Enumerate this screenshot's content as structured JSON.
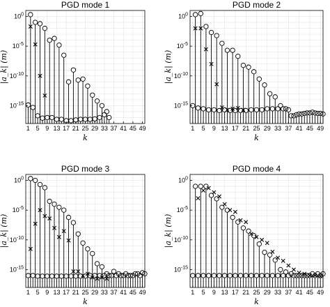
{
  "chart_data": [
    {
      "type": "stem",
      "title": "PGD mode 1",
      "xlabel": "k",
      "ylabel": "|a_k| (m)",
      "x_ticks": [
        1,
        5,
        9,
        13,
        17,
        21,
        25,
        29,
        33,
        37,
        41,
        45,
        49
      ],
      "y_scale": "log",
      "y_ticks": [
        1e-15,
        1e-10,
        1e-05,
        1
      ],
      "y_tick_labels": [
        [
          "10",
          "-15"
        ],
        [
          "10",
          "-10"
        ],
        [
          "10",
          "-5"
        ],
        [
          "10",
          "0"
        ]
      ],
      "ylim": [
        1e-18,
        10
      ],
      "xlim": [
        0,
        50
      ],
      "grid": true,
      "series": [
        {
          "marker": "circle",
          "k": [
            1,
            2,
            3,
            4,
            5,
            6,
            7,
            8,
            9,
            10,
            11,
            12,
            13,
            14,
            15,
            16,
            17,
            18,
            19,
            20,
            21,
            22,
            23,
            24,
            25,
            26,
            27,
            28,
            29,
            30,
            31,
            32,
            33,
            34,
            35
          ],
          "values": [
            1.3e-15,
            2.0,
            5e-16,
            0.1,
            2e-17,
            0.06,
            8e-18,
            0.01,
            1e-17,
            0.0001,
            1e-17,
            0.0002,
            5e-18,
            1.5e-05,
            5e-18,
            3e-07,
            3e-18,
            1e-11,
            3e-18,
            1e-09,
            4e-18,
            2e-11,
            5e-18,
            3e-11,
            5e-18,
            2e-12,
            5e-18,
            6e-14,
            6e-18,
            6e-15,
            1e-17,
            1e-15,
            3e-17,
            1e-16,
            1e-17
          ]
        },
        {
          "marker": "x",
          "k": [
            2,
            4,
            6,
            8
          ],
          "values": [
            0.02,
            2e-05,
            1e-10,
            5e-14
          ]
        }
      ]
    },
    {
      "type": "stem",
      "title": "PGD mode 2",
      "xlabel": "k",
      "ylabel": "|a_k| (m)",
      "x_ticks": [
        1,
        5,
        9,
        13,
        17,
        21,
        25,
        29,
        33,
        37,
        41,
        45,
        49
      ],
      "y_scale": "log",
      "y_ticks": [
        1e-15,
        1e-10,
        1e-05,
        1
      ],
      "y_tick_labels": [
        [
          "10",
          "-15"
        ],
        [
          "10",
          "-10"
        ],
        [
          "10",
          "-5"
        ],
        [
          "10",
          "0"
        ]
      ],
      "ylim": [
        1e-18,
        10
      ],
      "xlim": [
        0,
        50
      ],
      "grid": true,
      "series": [
        {
          "marker": "circle",
          "k": [
            1,
            2,
            3,
            4,
            5,
            6,
            7,
            8,
            9,
            10,
            11,
            12,
            13,
            14,
            15,
            16,
            17,
            18,
            19,
            20,
            21,
            22,
            23,
            24,
            25,
            26,
            27,
            28,
            29,
            30,
            31,
            32,
            33,
            34,
            35,
            36,
            37,
            38,
            39,
            40,
            41,
            42,
            43,
            44,
            45,
            46,
            47,
            48,
            49,
            50
          ],
          "values": [
            1e-15,
            2.0,
            4e-16,
            3.0,
            3e-16,
            0.02,
            2e-16,
            0.002,
            2e-16,
            0.0006,
            1.5e-16,
            3e-05,
            2e-16,
            2e-06,
            1.5e-16,
            2e-06,
            1.5e-16,
            2e-07,
            1.5e-16,
            6e-09,
            1.5e-16,
            3e-09,
            2e-16,
            5e-10,
            2e-16,
            3e-11,
            2e-16,
            3e-12,
            3e-16,
            1e-13,
            3e-16,
            3e-14,
            3e-16,
            1e-15,
            3e-16,
            3e-16,
            2e-16,
            2e-17,
            2e-17,
            3e-17,
            4e-17,
            4e-17,
            5e-17,
            6e-17,
            6e-17,
            8e-17,
            6e-17,
            5e-17,
            5e-17,
            4e-17
          ]
        },
        {
          "marker": "x",
          "k": [
            2,
            4,
            6,
            8,
            10,
            12,
            14,
            16,
            18,
            20
          ],
          "values": [
            0.01,
            0.01,
            3e-06,
            1e-08,
            4e-12,
            5e-16,
            2e-16,
            3e-16,
            4e-16,
            2e-16
          ]
        }
      ]
    },
    {
      "type": "stem",
      "title": "PGD mode 3",
      "xlabel": "k",
      "ylabel": "|a_k| (m)",
      "x_ticks": [
        1,
        5,
        9,
        13,
        17,
        21,
        25,
        29,
        33,
        37,
        41,
        45,
        49
      ],
      "y_scale": "log",
      "y_ticks": [
        1e-15,
        1e-10,
        1e-05,
        1
      ],
      "y_tick_labels": [
        [
          "10",
          "-15"
        ],
        [
          "10",
          "-10"
        ],
        [
          "10",
          "-5"
        ],
        [
          "10",
          "0"
        ]
      ],
      "ylim": [
        1e-18,
        10
      ],
      "xlim": [
        0,
        50
      ],
      "grid": true,
      "series": [
        {
          "marker": "circle",
          "k": [
            1,
            2,
            3,
            4,
            5,
            6,
            7,
            8,
            9,
            10,
            11,
            12,
            13,
            14,
            15,
            16,
            17,
            18,
            19,
            20,
            21,
            22,
            23,
            24,
            25,
            26,
            27,
            28,
            29,
            30,
            31,
            32,
            33,
            34,
            35,
            36,
            37,
            38,
            39,
            40,
            41,
            42,
            43,
            44,
            45,
            46,
            47,
            48,
            49,
            50
          ],
          "values": [
            1e-16,
            2.0,
            1e-16,
            1.0,
            8e-17,
            0.2,
            8e-17,
            0.06,
            8e-17,
            0.0003,
            8e-17,
            0.0001,
            8e-17,
            3e-05,
            8e-17,
            1e-05,
            8e-17,
            6e-07,
            8e-17,
            8e-08,
            8e-17,
            1e-09,
            8e-17,
            3e-11,
            8e-17,
            3e-12,
            1e-16,
            5e-13,
            1e-16,
            1e-14,
            1e-16,
            3e-15,
            1e-16,
            2e-16,
            1e-16,
            1e-16,
            5e-16,
            1e-16,
            2e-16,
            1e-16,
            1e-16,
            2e-16,
            1e-16,
            1e-16,
            1e-16,
            2e-16,
            2e-16,
            1e-16,
            3e-16,
            2e-16
          ]
        },
        {
          "marker": "x",
          "k": [
            2,
            4,
            6,
            8,
            10,
            12,
            14,
            16,
            18,
            20,
            22,
            24,
            26,
            28,
            30,
            32,
            34
          ],
          "values": [
            3e-12,
            5e-08,
            1e-05,
            1e-06,
            4e-07,
            1e-08,
            3e-10,
            3e-09,
            8e-11,
            5e-16,
            5e-16,
            1e-16,
            2e-16,
            5e-17,
            3e-17,
            5e-17,
            3e-17
          ]
        }
      ]
    },
    {
      "type": "stem",
      "title": "PGD mode 4",
      "xlabel": "k",
      "ylabel": "|a_k| (m)",
      "x_ticks": [
        1,
        5,
        9,
        13,
        17,
        21,
        25,
        29,
        33,
        37,
        41,
        45,
        49
      ],
      "y_scale": "log",
      "y_ticks": [
        1e-15,
        1e-10,
        1e-05,
        1
      ],
      "y_tick_labels": [
        [
          "10",
          "-15"
        ],
        [
          "10",
          "-10"
        ],
        [
          "10",
          "-5"
        ],
        [
          "10",
          "0"
        ]
      ],
      "ylim": [
        1e-18,
        10
      ],
      "xlim": [
        0,
        50
      ],
      "grid": true,
      "series": [
        {
          "marker": "circle",
          "k": [
            1,
            2,
            3,
            4,
            5,
            6,
            7,
            8,
            9,
            10,
            11,
            12,
            13,
            14,
            15,
            16,
            17,
            18,
            19,
            20,
            21,
            22,
            23,
            24,
            25,
            26,
            27,
            28,
            29,
            30,
            31,
            32,
            33,
            34,
            35,
            36,
            37,
            38,
            39,
            40,
            41,
            42,
            43,
            44,
            45,
            46,
            47,
            48,
            49,
            50
          ],
          "values": [
            1e-16,
            0.1,
            1e-16,
            0.1,
            1e-16,
            0.1,
            1e-16,
            0.003,
            1e-16,
            0.0008,
            1e-16,
            3e-05,
            1e-16,
            1e-05,
            1e-16,
            6e-07,
            1e-16,
            1e-07,
            1e-16,
            1e-08,
            1e-16,
            3e-09,
            1e-16,
            5e-10,
            1e-16,
            2e-11,
            1e-16,
            8e-13,
            1e-16,
            3e-13,
            1e-16,
            4e-14,
            1e-16,
            1e-15,
            1e-16,
            4e-16,
            1e-16,
            2e-16,
            1e-16,
            1e-16,
            1e-16,
            1e-16,
            1e-16,
            1e-16,
            1e-16,
            2e-16,
            1e-16,
            2e-16,
            1e-16,
            2e-16
          ]
        },
        {
          "marker": "x",
          "k": [
            3,
            5,
            7,
            9,
            11,
            13,
            15,
            17,
            19,
            21,
            23,
            25,
            27,
            29,
            31,
            33,
            35,
            37,
            39,
            41,
            43,
            45,
            47,
            49
          ],
          "values": [
            0.001,
            0.02,
            0.05,
            0.01,
            0.002,
            0.0001,
            1e-05,
            5e-06,
            2e-07,
            1e-07,
            1e-09,
            3e-10,
            1e-10,
            3e-11,
            1e-12,
            1e-13,
            3e-14,
            5e-15,
            1e-15,
            3e-16,
            2e-16,
            1e-16,
            1e-16,
            8e-17
          ]
        }
      ]
    }
  ]
}
